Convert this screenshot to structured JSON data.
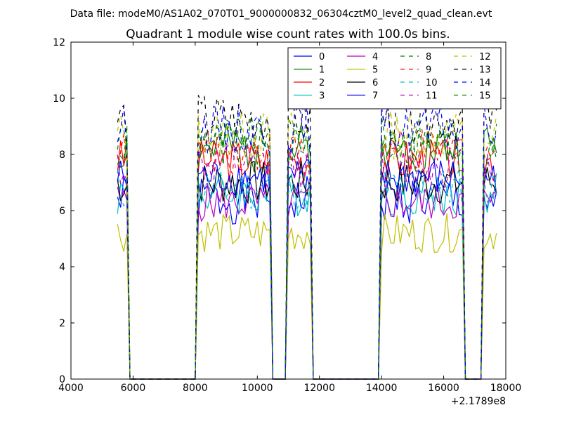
{
  "chart_data": {
    "type": "line",
    "suptitle": "Data file: modeM0/AS1A02_070T01_9000000832_06304cztM0_level2_quad_clean.evt",
    "title": "Quadrant 1 module wise count rates with 100.0s bins.",
    "xlabel": "",
    "ylabel": "",
    "x_offset_label": "+2.1789e8",
    "xlim": [
      4000,
      18000
    ],
    "ylim": [
      0,
      12
    ],
    "xticks": [
      4000,
      6000,
      8000,
      10000,
      12000,
      14000,
      16000,
      18000
    ],
    "xtick_labels": [
      "4000",
      "6000",
      "8000",
      "10000",
      "12000",
      "14000",
      "16000",
      "18000"
    ],
    "yticks": [
      0,
      2,
      4,
      6,
      8,
      10,
      12
    ],
    "ytick_labels": [
      "0",
      "2",
      "4",
      "6",
      "8",
      "10",
      "12"
    ],
    "grid": false,
    "legend_position": "top-right",
    "legend_columns": 4,
    "series": [
      {
        "name": "0",
        "color": "#0000ff",
        "dash": "solid",
        "level": 6.4,
        "amp": 0.45,
        "seed": 1
      },
      {
        "name": "1",
        "color": "#008000",
        "dash": "solid",
        "level": 8.2,
        "amp": 0.45,
        "seed": 2
      },
      {
        "name": "2",
        "color": "#ff0000",
        "dash": "solid",
        "level": 7.8,
        "amp": 0.4,
        "seed": 3
      },
      {
        "name": "3",
        "color": "#00bfbf",
        "dash": "solid",
        "level": 6.6,
        "amp": 0.4,
        "seed": 4
      },
      {
        "name": "4",
        "color": "#bf00bf",
        "dash": "solid",
        "level": 6.3,
        "amp": 0.35,
        "seed": 5
      },
      {
        "name": "5",
        "color": "#bfbf00",
        "dash": "solid",
        "level": 5.2,
        "amp": 0.35,
        "seed": 6
      },
      {
        "name": "6",
        "color": "#000000",
        "dash": "solid",
        "level": 7.0,
        "amp": 0.4,
        "seed": 7
      },
      {
        "name": "7",
        "color": "#0000ff",
        "dash": "solid",
        "level": 7.2,
        "amp": 0.35,
        "seed": 8
      },
      {
        "name": "8",
        "color": "#008000",
        "dash": "dashed",
        "level": 8.6,
        "amp": 0.4,
        "seed": 9
      },
      {
        "name": "9",
        "color": "#ff0000",
        "dash": "dashed",
        "level": 8.1,
        "amp": 0.4,
        "seed": 10
      },
      {
        "name": "10",
        "color": "#00bfbf",
        "dash": "dashed",
        "level": 6.8,
        "amp": 0.4,
        "seed": 11
      },
      {
        "name": "11",
        "color": "#bf00bf",
        "dash": "dashed",
        "level": 7.6,
        "amp": 0.4,
        "seed": 12
      },
      {
        "name": "12",
        "color": "#bfbf00",
        "dash": "dashed",
        "level": 8.7,
        "amp": 0.45,
        "seed": 13
      },
      {
        "name": "13",
        "color": "#000000",
        "dash": "dashed",
        "level": 9.3,
        "amp": 0.45,
        "seed": 14
      },
      {
        "name": "14",
        "color": "#0000ff",
        "dash": "dashed",
        "level": 8.9,
        "amp": 0.45,
        "seed": 15
      },
      {
        "name": "15",
        "color": "#008000",
        "dash": "dashed",
        "level": 8.3,
        "amp": 0.4,
        "seed": 16
      }
    ],
    "x_start": 5500,
    "x_end": 17700,
    "x_step": 100,
    "active_intervals": [
      [
        5500,
        5800
      ],
      [
        8100,
        10400
      ],
      [
        11000,
        11700
      ],
      [
        14000,
        16600
      ],
      [
        17300,
        17700
      ]
    ]
  }
}
